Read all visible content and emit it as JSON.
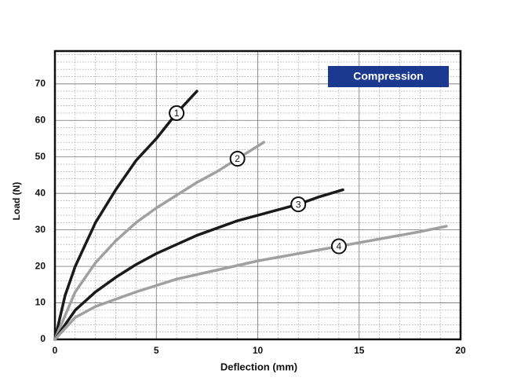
{
  "chart_data": {
    "type": "line",
    "xlabel": "Deflection (mm)",
    "ylabel": "Load (N)",
    "annotation": "Compression",
    "xlim": [
      0,
      20
    ],
    "ylim": [
      0,
      79
    ],
    "xticks": [
      0,
      5,
      10,
      15,
      20
    ],
    "yticks": [
      0,
      10,
      20,
      30,
      40,
      50,
      60,
      70
    ],
    "grid": true,
    "series": [
      {
        "name": "1",
        "color": "#1a1a1a",
        "x": [
          0,
          0.5,
          1,
          2,
          3,
          4,
          5,
          6,
          7
        ],
        "values": [
          0,
          12,
          20,
          32,
          41,
          49,
          55,
          62,
          68
        ]
      },
      {
        "name": "2",
        "color": "#a0a0a0",
        "x": [
          0,
          1,
          2,
          3,
          4,
          5,
          6,
          7,
          8,
          9,
          10.3
        ],
        "values": [
          0,
          13,
          21,
          27,
          32,
          36,
          39.5,
          43,
          46,
          49.5,
          54
        ]
      },
      {
        "name": "3",
        "color": "#1a1a1a",
        "x": [
          0,
          1,
          2,
          3,
          4,
          5,
          6,
          7,
          8,
          9,
          10,
          11,
          12,
          13,
          14.2
        ],
        "values": [
          0,
          8,
          13,
          17,
          20.5,
          23.5,
          26,
          28.5,
          30.5,
          32.5,
          34,
          35.5,
          37,
          39,
          41
        ]
      },
      {
        "name": "4",
        "color": "#a0a0a0",
        "x": [
          0,
          1,
          2,
          4,
          6,
          8,
          10,
          12,
          14,
          16,
          18,
          19.3
        ],
        "values": [
          0,
          6,
          9,
          13,
          16.5,
          19,
          21.5,
          23.5,
          25.5,
          27.5,
          29.5,
          31
        ]
      }
    ]
  }
}
